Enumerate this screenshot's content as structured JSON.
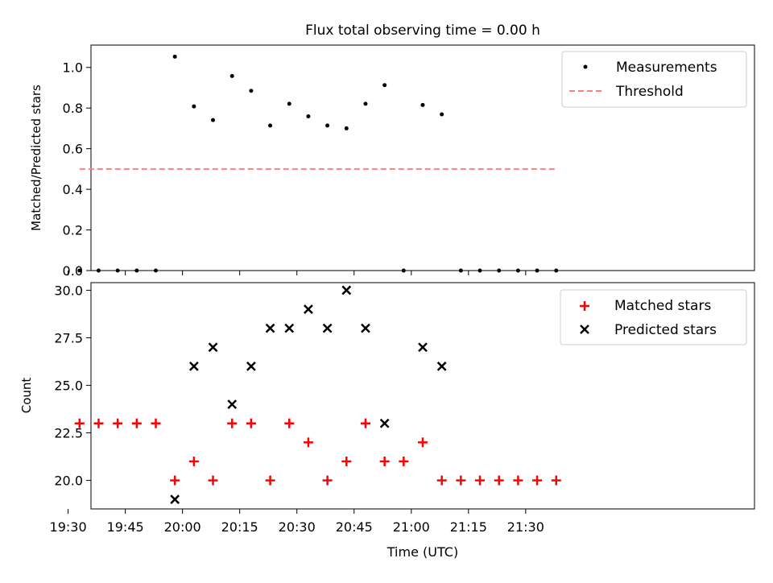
{
  "title": "Flux total observing time = 0.00 h",
  "chart_data": [
    {
      "type": "scatter",
      "ylabel": "Matched/Predicted stars",
      "xlabel": "",
      "ylim": [
        0,
        1.11
      ],
      "xlim_minutes": [
        1176,
        1350
      ],
      "x_time": [
        "19:33",
        "19:38",
        "19:43",
        "19:48",
        "19:53",
        "19:58",
        "20:03",
        "20:08",
        "20:13",
        "20:18",
        "20:23",
        "20:28",
        "20:33",
        "20:38",
        "20:43",
        "20:48",
        "20:53",
        "20:58",
        "21:03",
        "21:08",
        "21:13",
        "21:18",
        "21:23",
        "21:28",
        "21:33",
        "21:38"
      ],
      "series": [
        {
          "name": "Measurements",
          "values": [
            0,
            0,
            0,
            0,
            0,
            1.053,
            0.808,
            0.741,
            0.958,
            0.885,
            0.714,
            0.821,
            0.759,
            0.714,
            0.7,
            0.821,
            0.913,
            0,
            0.815,
            0.769,
            0,
            0,
            0,
            0,
            0,
            0
          ],
          "color": "#000000",
          "marker": "dot"
        }
      ],
      "threshold": {
        "name": "Threshold",
        "value": 0.5,
        "x_start": "19:33",
        "x_end": "21:38",
        "color": "#ff7f7f"
      },
      "yticks": [
        "0.0",
        "0.2",
        "0.4",
        "0.6",
        "0.8",
        "1.0"
      ],
      "ytick_values": [
        0,
        0.2,
        0.4,
        0.6,
        0.8,
        1.0
      ],
      "legend": "top-right"
    },
    {
      "type": "scatter",
      "ylabel": "Count",
      "xlabel": "Time (UTC)",
      "ylim": [
        18.5,
        30.4
      ],
      "xlim_minutes": [
        1176,
        1350
      ],
      "series": [
        {
          "name": "Matched stars",
          "marker": "plus",
          "color": "#ff0000",
          "points": [
            [
              "19:33",
              23
            ],
            [
              "19:38",
              23
            ],
            [
              "19:43",
              23
            ],
            [
              "19:48",
              23
            ],
            [
              "19:53",
              23
            ],
            [
              "19:58",
              20
            ],
            [
              "20:03",
              21
            ],
            [
              "20:08",
              20
            ],
            [
              "20:13",
              23
            ],
            [
              "20:18",
              23
            ],
            [
              "20:23",
              20
            ],
            [
              "20:28",
              23
            ],
            [
              "20:33",
              22
            ],
            [
              "20:38",
              20
            ],
            [
              "20:43",
              21
            ],
            [
              "20:48",
              23
            ],
            [
              "20:53",
              21
            ],
            [
              "20:58",
              21
            ],
            [
              "21:03",
              22
            ],
            [
              "21:08",
              20
            ],
            [
              "21:13",
              20
            ],
            [
              "21:18",
              20
            ],
            [
              "21:23",
              20
            ],
            [
              "21:28",
              20
            ],
            [
              "21:33",
              20
            ],
            [
              "21:38",
              20
            ]
          ]
        },
        {
          "name": "Predicted stars",
          "marker": "x",
          "color": "#000000",
          "points": [
            [
              "19:58",
              19
            ],
            [
              "20:03",
              26
            ],
            [
              "20:08",
              27
            ],
            [
              "20:13",
              24
            ],
            [
              "20:18",
              26
            ],
            [
              "20:23",
              28
            ],
            [
              "20:28",
              28
            ],
            [
              "20:33",
              29
            ],
            [
              "20:38",
              28
            ],
            [
              "20:43",
              30
            ],
            [
              "20:48",
              28
            ],
            [
              "20:53",
              23
            ],
            [
              "21:03",
              27
            ],
            [
              "21:08",
              26
            ]
          ]
        }
      ],
      "yticks": [
        "20.0",
        "22.5",
        "25.0",
        "27.5",
        "30.0"
      ],
      "ytick_values": [
        20,
        22.5,
        25,
        27.5,
        30
      ],
      "xticks": [
        "19:30",
        "19:45",
        "20:00",
        "20:15",
        "20:30",
        "20:45",
        "21:00",
        "21:15",
        "21:30"
      ],
      "xtick_minutes": [
        1170,
        1185,
        1200,
        1215,
        1230,
        1245,
        1260,
        1275,
        1290
      ],
      "legend": "top-right"
    }
  ]
}
